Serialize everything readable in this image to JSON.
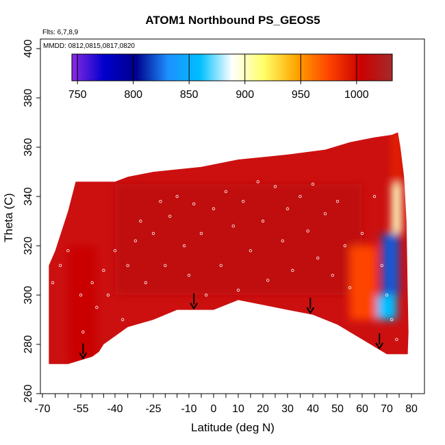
{
  "chart_data": {
    "type": "heatmap",
    "title": "ATOM1 Northbound PS_GEOS5",
    "flights_note": "Flts: 6,7,8,9",
    "dates_note": "MMDD: 0812,0815,0817,0820",
    "xlabel": "Latitude (deg N)",
    "ylabel": "Theta (C)",
    "xlim": [
      -70,
      85
    ],
    "ylim": [
      260,
      400
    ],
    "x_ticks": [
      -70,
      -55,
      -40,
      -25,
      -10,
      0,
      10,
      20,
      30,
      40,
      50,
      60,
      70,
      80
    ],
    "y_ticks": [
      260,
      280,
      300,
      320,
      340,
      360,
      380,
      400
    ],
    "colorbar": {
      "range": [
        745,
        1032
      ],
      "ticks": [
        750,
        800,
        850,
        900,
        950,
        1000
      ],
      "colors": [
        "#8a2be2",
        "#0000cd",
        "#00008b",
        "#1e90ff",
        "#00bfff",
        "#ffffff",
        "#ffff66",
        "#ffa500",
        "#ff4500",
        "#cc0000",
        "#a52a2a"
      ]
    },
    "upper_boundary": [
      [
        -67.5,
        312
      ],
      [
        -65,
        318
      ],
      [
        -62.5,
        326
      ],
      [
        -60,
        334
      ],
      [
        -57,
        346
      ],
      [
        -40,
        346
      ],
      [
        -35,
        348
      ],
      [
        -25,
        350
      ],
      [
        -5,
        352
      ],
      [
        10,
        355
      ],
      [
        30,
        357
      ],
      [
        45,
        359
      ],
      [
        55,
        362
      ],
      [
        65,
        364
      ],
      [
        72,
        365
      ],
      [
        74.5,
        366
      ],
      [
        75.5,
        360
      ],
      [
        77,
        348
      ],
      [
        78,
        330
      ],
      [
        78.5,
        300
      ],
      [
        78.8,
        285
      ],
      [
        78.5,
        276
      ]
    ],
    "lower_boundary": [
      [
        -67.5,
        272
      ],
      [
        -60,
        272
      ],
      [
        -50,
        275
      ],
      [
        -47,
        277
      ],
      [
        -45,
        280
      ],
      [
        -35,
        287
      ],
      [
        -25,
        290
      ],
      [
        -15,
        294
      ],
      [
        -5,
        294
      ],
      [
        0,
        294
      ],
      [
        10,
        298
      ],
      [
        20,
        296
      ],
      [
        30,
        294
      ],
      [
        40,
        292
      ],
      [
        50,
        288
      ],
      [
        60,
        282
      ],
      [
        70,
        276
      ],
      [
        78.5,
        276
      ]
    ],
    "field_regions": [
      {
        "lat": [
          -60,
          -48
        ],
        "theta": [
          272,
          320
        ],
        "value": 1005
      },
      {
        "lat": [
          -40,
          60
        ],
        "theta": [
          300,
          345
        ],
        "value": 1012
      },
      {
        "lat": [
          55,
          66
        ],
        "theta": [
          290,
          320
        ],
        "value": 975
      },
      {
        "lat": [
          66,
          74
        ],
        "theta": [
          290,
          300
        ],
        "value": 860
      },
      {
        "lat": [
          68,
          75
        ],
        "theta": [
          300,
          325
        ],
        "value": 820
      },
      {
        "lat": [
          72,
          76
        ],
        "theta": [
          325,
          345
        ],
        "value": 900
      },
      {
        "lat": [
          72,
          76
        ],
        "theta": [
          345,
          366
        ],
        "value": 990
      }
    ],
    "flight_track_points": [
      [
        -66,
        305
      ],
      [
        -63,
        312
      ],
      [
        -60,
        318
      ],
      [
        -55,
        300
      ],
      [
        -54,
        285
      ],
      [
        -50,
        305
      ],
      [
        -48,
        295
      ],
      [
        -45,
        310
      ],
      [
        -43,
        300
      ],
      [
        -40,
        318
      ],
      [
        -37,
        290
      ],
      [
        -35,
        312
      ],
      [
        -32,
        322
      ],
      [
        -30,
        330
      ],
      [
        -28,
        305
      ],
      [
        -25,
        325
      ],
      [
        -22,
        338
      ],
      [
        -20,
        312
      ],
      [
        -18,
        332
      ],
      [
        -15,
        340
      ],
      [
        -12,
        320
      ],
      [
        -10,
        308
      ],
      [
        -8,
        337
      ],
      [
        -5,
        325
      ],
      [
        -3,
        300
      ],
      [
        0,
        335
      ],
      [
        3,
        312
      ],
      [
        5,
        342
      ],
      [
        8,
        328
      ],
      [
        10,
        302
      ],
      [
        12,
        338
      ],
      [
        15,
        318
      ],
      [
        18,
        346
      ],
      [
        20,
        330
      ],
      [
        22,
        306
      ],
      [
        25,
        344
      ],
      [
        28,
        322
      ],
      [
        30,
        335
      ],
      [
        32,
        310
      ],
      [
        35,
        340
      ],
      [
        38,
        326
      ],
      [
        40,
        345
      ],
      [
        42,
        315
      ],
      [
        45,
        333
      ],
      [
        48,
        308
      ],
      [
        50,
        338
      ],
      [
        53,
        320
      ],
      [
        55,
        303
      ],
      [
        60,
        325
      ],
      [
        65,
        340
      ],
      [
        68,
        312
      ],
      [
        70,
        300
      ],
      [
        72,
        290
      ],
      [
        74,
        282
      ]
    ],
    "arrows_at_lat": [
      -54,
      -8,
      39,
      67
    ]
  }
}
